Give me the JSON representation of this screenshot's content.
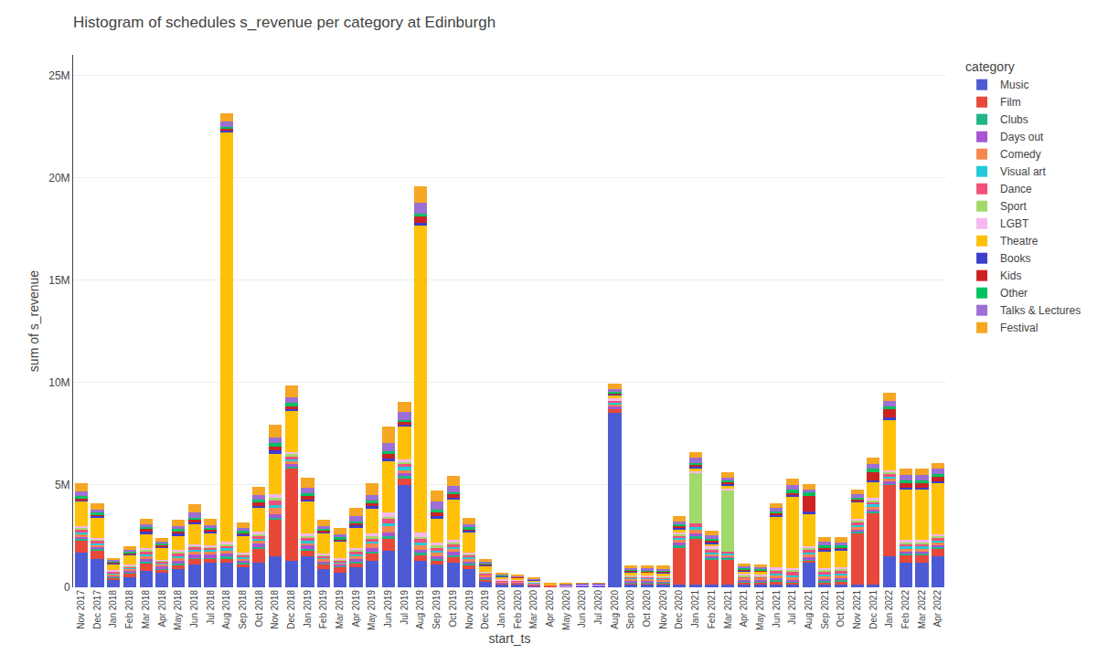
{
  "chart_data": {
    "type": "bar",
    "title": "Histogram of schedules s_revenue per category at Edinburgh",
    "xlabel": "start_ts",
    "ylabel": "sum of s_revenue",
    "legend_title": "category",
    "legend": "right",
    "stacked": true,
    "grid": true,
    "categories": [
      "Nov 2017",
      "Dec 2017",
      "Jan 2018",
      "Feb 2018",
      "Mar 2018",
      "Apr 2018",
      "May 2018",
      "Jun 2018",
      "Jul 2018",
      "Aug 2018",
      "Sep 2018",
      "Oct 2018",
      "Nov 2018",
      "Dec 2018",
      "Jan 2019",
      "Feb 2019",
      "Mar 2019",
      "Apr 2019",
      "May 2019",
      "Jun 2019",
      "Jul 2019",
      "Aug 2019",
      "Sep 2019",
      "Oct 2019",
      "Nov 2019",
      "Dec 2019",
      "Jan 2020",
      "Feb 2020",
      "Mar 2020",
      "Apr 2020",
      "May 2020",
      "Jun 2020",
      "Jul 2020",
      "Aug 2020",
      "Sep 2020",
      "Oct 2020",
      "Nov 2020",
      "Dec 2020",
      "Jan 2021",
      "Feb 2021",
      "Mar 2021",
      "Apr 2021",
      "May 2021",
      "Jun 2021",
      "Jul 2021",
      "Aug 2021",
      "Sep 2021",
      "Oct 2021",
      "Nov 2021",
      "Dec 2021",
      "Jan 2022",
      "Feb 2022",
      "Mar 2022",
      "Apr 2022"
    ],
    "ylim": [
      0,
      26000000
    ],
    "yticks": [
      0,
      {
        "value": 5000000,
        "label": "5M"
      },
      {
        "value": 10000000,
        "label": "10M"
      },
      {
        "value": 15000000,
        "label": "15M"
      },
      {
        "value": 20000000,
        "label": "20M"
      },
      {
        "value": 25000000,
        "label": "25M"
      }
    ],
    "series": [
      {
        "name": "Music",
        "color": "#4c5bd4",
        "values": [
          1700000,
          1400000,
          400000,
          500000,
          800000,
          700000,
          900000,
          1100000,
          1200000,
          1200000,
          1000000,
          1200000,
          1500000,
          1300000,
          1500000,
          900000,
          700000,
          1000000,
          1300000,
          1800000,
          5000000,
          1300000,
          1100000,
          1200000,
          900000,
          300000,
          150000,
          150000,
          80000,
          40000,
          30000,
          50000,
          50000,
          8500000,
          150000,
          150000,
          150000,
          150000,
          150000,
          150000,
          150000,
          150000,
          150000,
          150000,
          150000,
          1200000,
          150000,
          150000,
          150000,
          150000,
          1500000,
          1200000,
          1200000,
          1500000
        ]
      },
      {
        "name": "Film",
        "color": "#e8483a",
        "values": [
          600000,
          400000,
          80000,
          200000,
          400000,
          150000,
          200000,
          300000,
          200000,
          200000,
          150000,
          700000,
          1800000,
          4500000,
          300000,
          250000,
          300000,
          200000,
          350000,
          600000,
          350000,
          300000,
          200000,
          300000,
          200000,
          80000,
          40000,
          40000,
          40000,
          8000,
          8000,
          30000,
          30000,
          200000,
          70000,
          70000,
          40000,
          1800000,
          2200000,
          1200000,
          1200000,
          100000,
          100000,
          150000,
          80000,
          100000,
          100000,
          150000,
          2500000,
          3500000,
          3500000,
          400000,
          400000,
          400000
        ]
      },
      {
        "name": "Clubs",
        "color": "#21b588",
        "values": [
          80000,
          80000,
          40000,
          40000,
          40000,
          40000,
          40000,
          40000,
          40000,
          150000,
          80000,
          80000,
          80000,
          80000,
          80000,
          40000,
          40000,
          40000,
          80000,
          80000,
          80000,
          80000,
          80000,
          80000,
          80000,
          40000,
          15000,
          15000,
          8000,
          4000,
          4000,
          4000,
          4000,
          40000,
          40000,
          40000,
          40000,
          80000,
          150000,
          80000,
          80000,
          40000,
          40000,
          80000,
          40000,
          80000,
          80000,
          80000,
          80000,
          80000,
          80000,
          80000,
          80000,
          80000
        ]
      },
      {
        "name": "Days out",
        "color": "#a855d4",
        "values": [
          80000,
          80000,
          40000,
          80000,
          150000,
          150000,
          150000,
          150000,
          150000,
          80000,
          80000,
          150000,
          200000,
          150000,
          150000,
          80000,
          80000,
          150000,
          200000,
          200000,
          150000,
          150000,
          150000,
          150000,
          80000,
          80000,
          40000,
          40000,
          40000,
          8000,
          8000,
          8000,
          8000,
          80000,
          80000,
          80000,
          80000,
          150000,
          150000,
          80000,
          80000,
          80000,
          80000,
          80000,
          80000,
          80000,
          80000,
          80000,
          80000,
          80000,
          80000,
          80000,
          80000,
          80000
        ]
      },
      {
        "name": "Comedy",
        "color": "#f5874f",
        "values": [
          150000,
          120000,
          80000,
          80000,
          150000,
          80000,
          150000,
          150000,
          150000,
          150000,
          80000,
          150000,
          300000,
          150000,
          150000,
          150000,
          80000,
          150000,
          200000,
          300000,
          150000,
          200000,
          150000,
          150000,
          150000,
          80000,
          40000,
          40000,
          40000,
          15000,
          15000,
          15000,
          15000,
          120000,
          80000,
          80000,
          80000,
          150000,
          150000,
          120000,
          80000,
          80000,
          80000,
          120000,
          150000,
          150000,
          150000,
          150000,
          150000,
          150000,
          150000,
          150000,
          150000,
          150000
        ]
      },
      {
        "name": "Visual art",
        "color": "#26c9d8",
        "values": [
          80000,
          80000,
          40000,
          40000,
          80000,
          40000,
          80000,
          80000,
          80000,
          120000,
          80000,
          80000,
          150000,
          80000,
          80000,
          40000,
          40000,
          80000,
          120000,
          150000,
          150000,
          150000,
          120000,
          80000,
          80000,
          40000,
          15000,
          15000,
          15000,
          8000,
          8000,
          8000,
          8000,
          80000,
          40000,
          40000,
          40000,
          80000,
          150000,
          80000,
          80000,
          40000,
          40000,
          80000,
          80000,
          80000,
          80000,
          80000,
          80000,
          80000,
          80000,
          80000,
          80000,
          80000
        ]
      },
      {
        "name": "Dance",
        "color": "#f0507a",
        "values": [
          150000,
          120000,
          80000,
          80000,
          150000,
          120000,
          150000,
          150000,
          120000,
          150000,
          120000,
          150000,
          200000,
          150000,
          150000,
          80000,
          80000,
          120000,
          150000,
          200000,
          150000,
          200000,
          150000,
          150000,
          80000,
          80000,
          40000,
          40000,
          25000,
          8000,
          8000,
          8000,
          8000,
          80000,
          40000,
          40000,
          40000,
          120000,
          150000,
          120000,
          80000,
          40000,
          40000,
          150000,
          200000,
          150000,
          150000,
          150000,
          150000,
          150000,
          150000,
          150000,
          150000,
          150000
        ]
      },
      {
        "name": "Sport",
        "color": "#a2d96b",
        "values": [
          80000,
          40000,
          40000,
          40000,
          80000,
          40000,
          80000,
          40000,
          40000,
          40000,
          40000,
          80000,
          150000,
          80000,
          80000,
          40000,
          40000,
          80000,
          80000,
          120000,
          80000,
          80000,
          80000,
          80000,
          40000,
          25000,
          15000,
          15000,
          8000,
          4000,
          4000,
          4000,
          4000,
          40000,
          40000,
          25000,
          40000,
          80000,
          2500000,
          80000,
          3000000,
          80000,
          40000,
          80000,
          80000,
          80000,
          80000,
          80000,
          80000,
          80000,
          80000,
          80000,
          80000,
          80000
        ]
      },
      {
        "name": "LGBT",
        "color": "#f5b8f0",
        "values": [
          80000,
          80000,
          40000,
          40000,
          80000,
          40000,
          80000,
          80000,
          80000,
          150000,
          80000,
          120000,
          150000,
          120000,
          120000,
          80000,
          80000,
          120000,
          150000,
          200000,
          150000,
          200000,
          150000,
          120000,
          80000,
          40000,
          25000,
          25000,
          15000,
          8000,
          8000,
          8000,
          8000,
          80000,
          40000,
          40000,
          40000,
          80000,
          80000,
          80000,
          80000,
          40000,
          40000,
          80000,
          80000,
          80000,
          80000,
          80000,
          80000,
          80000,
          80000,
          80000,
          80000,
          80000
        ]
      },
      {
        "name": "Theatre",
        "color": "#ffc107",
        "values": [
          1200000,
          1000000,
          300000,
          500000,
          700000,
          600000,
          700000,
          1000000,
          600000,
          20000000,
          800000,
          1200000,
          2000000,
          2000000,
          1600000,
          1000000,
          800000,
          1000000,
          1200000,
          2500000,
          1600000,
          15000000,
          1200000,
          2000000,
          1000000,
          300000,
          150000,
          80000,
          80000,
          40000,
          40000,
          40000,
          40000,
          150000,
          150000,
          150000,
          150000,
          150000,
          150000,
          150000,
          150000,
          150000,
          150000,
          2500000,
          3500000,
          1600000,
          800000,
          800000,
          800000,
          800000,
          2500000,
          2500000,
          2500000,
          2500000
        ]
      },
      {
        "name": "Books",
        "color": "#3d3dcc",
        "values": [
          80000,
          80000,
          40000,
          40000,
          80000,
          40000,
          80000,
          80000,
          80000,
          80000,
          80000,
          80000,
          150000,
          80000,
          80000,
          40000,
          40000,
          80000,
          120000,
          150000,
          80000,
          150000,
          80000,
          80000,
          80000,
          40000,
          15000,
          15000,
          8000,
          4000,
          4000,
          4000,
          4000,
          40000,
          40000,
          40000,
          40000,
          80000,
          80000,
          80000,
          80000,
          40000,
          40000,
          80000,
          80000,
          80000,
          80000,
          80000,
          80000,
          80000,
          80000,
          80000,
          80000,
          80000
        ]
      },
      {
        "name": "Kids",
        "color": "#cc2222",
        "values": [
          80000,
          80000,
          40000,
          40000,
          150000,
          80000,
          150000,
          150000,
          80000,
          80000,
          80000,
          150000,
          200000,
          150000,
          150000,
          80000,
          80000,
          120000,
          150000,
          200000,
          150000,
          300000,
          200000,
          150000,
          80000,
          40000,
          25000,
          25000,
          15000,
          8000,
          8000,
          8000,
          8000,
          80000,
          40000,
          40000,
          40000,
          80000,
          80000,
          80000,
          80000,
          40000,
          40000,
          80000,
          80000,
          800000,
          80000,
          80000,
          80000,
          400000,
          400000,
          200000,
          200000,
          200000
        ]
      },
      {
        "name": "Other",
        "color": "#00c060",
        "values": [
          80000,
          80000,
          40000,
          40000,
          80000,
          40000,
          80000,
          80000,
          80000,
          80000,
          80000,
          120000,
          150000,
          150000,
          150000,
          80000,
          80000,
          80000,
          120000,
          150000,
          80000,
          150000,
          120000,
          120000,
          80000,
          40000,
          15000,
          15000,
          8000,
          4000,
          4000,
          4000,
          4000,
          40000,
          40000,
          40000,
          40000,
          80000,
          80000,
          80000,
          80000,
          80000,
          80000,
          80000,
          150000,
          150000,
          150000,
          80000,
          80000,
          150000,
          150000,
          150000,
          150000,
          150000
        ]
      },
      {
        "name": "Talks & Lectures",
        "color": "#9b6fd4",
        "values": [
          250000,
          150000,
          80000,
          120000,
          150000,
          120000,
          150000,
          250000,
          150000,
          250000,
          150000,
          250000,
          300000,
          300000,
          250000,
          150000,
          150000,
          250000,
          300000,
          400000,
          400000,
          500000,
          400000,
          300000,
          150000,
          80000,
          40000,
          40000,
          25000,
          15000,
          15000,
          15000,
          15000,
          150000,
          80000,
          80000,
          80000,
          150000,
          250000,
          150000,
          150000,
          80000,
          80000,
          150000,
          250000,
          150000,
          150000,
          150000,
          150000,
          250000,
          250000,
          250000,
          250000,
          250000
        ]
      },
      {
        "name": "Festival",
        "color": "#f5a623",
        "values": [
          400000,
          300000,
          80000,
          150000,
          250000,
          150000,
          300000,
          400000,
          300000,
          400000,
          250000,
          400000,
          600000,
          550000,
          500000,
          300000,
          300000,
          400000,
          550000,
          800000,
          500000,
          800000,
          550000,
          500000,
          300000,
          120000,
          80000,
          80000,
          40000,
          15000,
          15000,
          15000,
          15000,
          250000,
          150000,
          150000,
          150000,
          250000,
          300000,
          250000,
          250000,
          120000,
          120000,
          250000,
          300000,
          250000,
          250000,
          250000,
          250000,
          300000,
          400000,
          300000,
          300000,
          300000
        ]
      }
    ]
  }
}
